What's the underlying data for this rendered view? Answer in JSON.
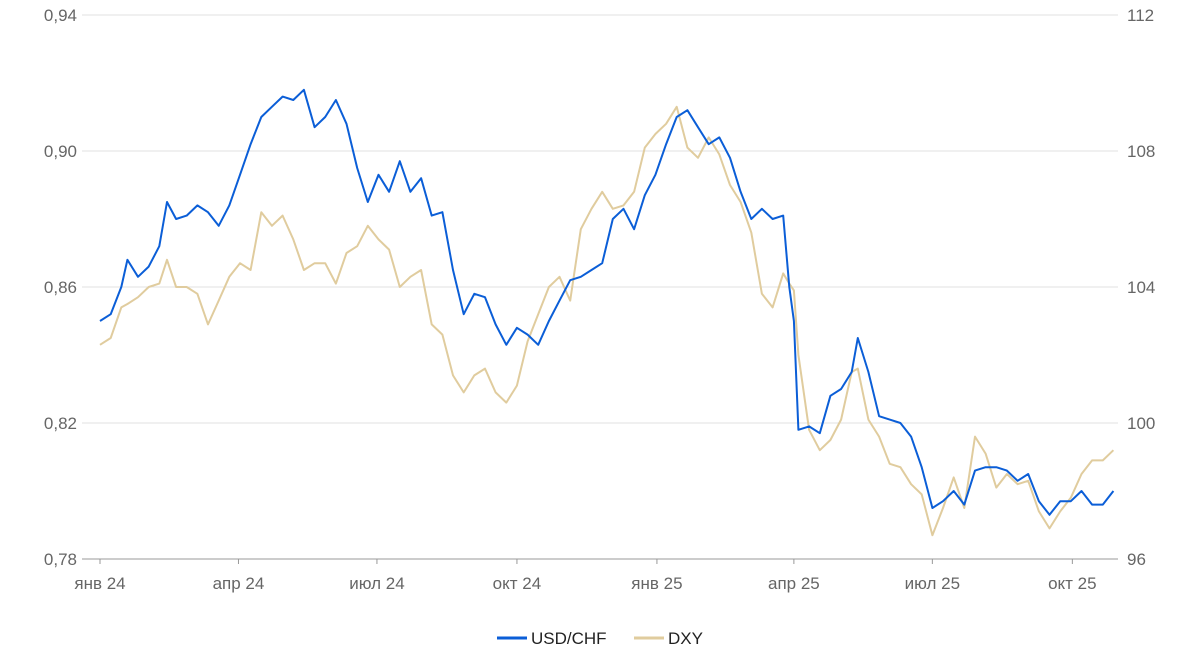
{
  "chart_data": {
    "type": "line",
    "title": "",
    "xlabel": "",
    "ylabel": "",
    "x_ticks": [
      "янв 24",
      "апр 24",
      "июл 24",
      "окт 24",
      "янв 25",
      "апр 25",
      "июл 25",
      "окт 25"
    ],
    "x_tick_dates": [
      "2024-01-01",
      "2024-04-01",
      "2024-07-01",
      "2024-10-01",
      "2025-01-01",
      "2025-04-01",
      "2025-07-01",
      "2025-10-01"
    ],
    "x_range": [
      "2024-01-01",
      "2025-10-31"
    ],
    "y_left": {
      "ticks": [
        "0,78",
        "0,82",
        "0,86",
        "0,90",
        "0,94"
      ],
      "ylim": [
        0.78,
        0.94
      ]
    },
    "y_right": {
      "ticks": [
        "96",
        "100",
        "104",
        "108",
        "112"
      ],
      "ylim": [
        96,
        112
      ]
    },
    "grid": true,
    "legend_position": "bottom-center",
    "series": [
      {
        "name": "USD/CHF",
        "axis": "left",
        "color": "#0b5ed7",
        "points": [
          [
            "2024-01-01",
            0.85
          ],
          [
            "2024-01-08",
            0.852
          ],
          [
            "2024-01-15",
            0.86
          ],
          [
            "2024-01-19",
            0.868
          ],
          [
            "2024-01-26",
            0.863
          ],
          [
            "2024-02-02",
            0.866
          ],
          [
            "2024-02-09",
            0.872
          ],
          [
            "2024-02-14",
            0.885
          ],
          [
            "2024-02-20",
            0.88
          ],
          [
            "2024-02-27",
            0.881
          ],
          [
            "2024-03-05",
            0.884
          ],
          [
            "2024-03-12",
            0.882
          ],
          [
            "2024-03-19",
            0.878
          ],
          [
            "2024-03-26",
            0.884
          ],
          [
            "2024-04-02",
            0.893
          ],
          [
            "2024-04-09",
            0.902
          ],
          [
            "2024-04-16",
            0.91
          ],
          [
            "2024-04-23",
            0.913
          ],
          [
            "2024-04-30",
            0.916
          ],
          [
            "2024-05-07",
            0.915
          ],
          [
            "2024-05-14",
            0.918
          ],
          [
            "2024-05-21",
            0.907
          ],
          [
            "2024-05-28",
            0.91
          ],
          [
            "2024-06-04",
            0.915
          ],
          [
            "2024-06-11",
            0.908
          ],
          [
            "2024-06-18",
            0.895
          ],
          [
            "2024-06-25",
            0.885
          ],
          [
            "2024-07-02",
            0.893
          ],
          [
            "2024-07-09",
            0.888
          ],
          [
            "2024-07-16",
            0.897
          ],
          [
            "2024-07-23",
            0.888
          ],
          [
            "2024-07-30",
            0.892
          ],
          [
            "2024-08-06",
            0.881
          ],
          [
            "2024-08-13",
            0.882
          ],
          [
            "2024-08-20",
            0.865
          ],
          [
            "2024-08-27",
            0.852
          ],
          [
            "2024-09-03",
            0.858
          ],
          [
            "2024-09-10",
            0.857
          ],
          [
            "2024-09-17",
            0.849
          ],
          [
            "2024-09-24",
            0.843
          ],
          [
            "2024-10-01",
            0.848
          ],
          [
            "2024-10-08",
            0.846
          ],
          [
            "2024-10-15",
            0.843
          ],
          [
            "2024-10-22",
            0.85
          ],
          [
            "2024-10-29",
            0.856
          ],
          [
            "2024-11-05",
            0.862
          ],
          [
            "2024-11-12",
            0.863
          ],
          [
            "2024-11-19",
            0.865
          ],
          [
            "2024-11-26",
            0.867
          ],
          [
            "2024-12-03",
            0.88
          ],
          [
            "2024-12-10",
            0.883
          ],
          [
            "2024-12-17",
            0.877
          ],
          [
            "2024-12-24",
            0.887
          ],
          [
            "2024-12-31",
            0.893
          ],
          [
            "2025-01-07",
            0.902
          ],
          [
            "2025-01-14",
            0.91
          ],
          [
            "2025-01-21",
            0.912
          ],
          [
            "2025-01-28",
            0.907
          ],
          [
            "2025-02-04",
            0.902
          ],
          [
            "2025-02-11",
            0.904
          ],
          [
            "2025-02-18",
            0.898
          ],
          [
            "2025-02-25",
            0.888
          ],
          [
            "2025-03-04",
            0.88
          ],
          [
            "2025-03-11",
            0.883
          ],
          [
            "2025-03-18",
            0.88
          ],
          [
            "2025-03-25",
            0.881
          ],
          [
            "2025-03-29",
            0.86
          ],
          [
            "2025-04-01",
            0.85
          ],
          [
            "2025-04-04",
            0.818
          ],
          [
            "2025-04-11",
            0.819
          ],
          [
            "2025-04-18",
            0.817
          ],
          [
            "2025-04-25",
            0.828
          ],
          [
            "2025-05-02",
            0.83
          ],
          [
            "2025-05-09",
            0.835
          ],
          [
            "2025-05-13",
            0.845
          ],
          [
            "2025-05-20",
            0.835
          ],
          [
            "2025-05-27",
            0.822
          ],
          [
            "2025-06-03",
            0.821
          ],
          [
            "2025-06-10",
            0.82
          ],
          [
            "2025-06-17",
            0.816
          ],
          [
            "2025-06-24",
            0.807
          ],
          [
            "2025-07-01",
            0.795
          ],
          [
            "2025-07-08",
            0.797
          ],
          [
            "2025-07-15",
            0.8
          ],
          [
            "2025-07-22",
            0.796
          ],
          [
            "2025-07-29",
            0.806
          ],
          [
            "2025-08-05",
            0.807
          ],
          [
            "2025-08-12",
            0.807
          ],
          [
            "2025-08-19",
            0.806
          ],
          [
            "2025-08-26",
            0.803
          ],
          [
            "2025-09-02",
            0.805
          ],
          [
            "2025-09-09",
            0.797
          ],
          [
            "2025-09-16",
            0.793
          ],
          [
            "2025-09-23",
            0.797
          ],
          [
            "2025-09-30",
            0.797
          ],
          [
            "2025-10-07",
            0.8
          ],
          [
            "2025-10-14",
            0.796
          ],
          [
            "2025-10-21",
            0.796
          ],
          [
            "2025-10-28",
            0.8
          ]
        ]
      },
      {
        "name": "DXY",
        "axis": "right",
        "color": "#e0cc9e",
        "points": [
          [
            "2024-01-01",
            102.3
          ],
          [
            "2024-01-08",
            102.5
          ],
          [
            "2024-01-15",
            103.4
          ],
          [
            "2024-01-19",
            103.5
          ],
          [
            "2024-01-26",
            103.7
          ],
          [
            "2024-02-02",
            104.0
          ],
          [
            "2024-02-09",
            104.1
          ],
          [
            "2024-02-14",
            104.8
          ],
          [
            "2024-02-20",
            104.0
          ],
          [
            "2024-02-27",
            104.0
          ],
          [
            "2024-03-05",
            103.8
          ],
          [
            "2024-03-12",
            102.9
          ],
          [
            "2024-03-19",
            103.6
          ],
          [
            "2024-03-26",
            104.3
          ],
          [
            "2024-04-02",
            104.7
          ],
          [
            "2024-04-09",
            104.5
          ],
          [
            "2024-04-16",
            106.2
          ],
          [
            "2024-04-23",
            105.8
          ],
          [
            "2024-04-30",
            106.1
          ],
          [
            "2024-05-07",
            105.4
          ],
          [
            "2024-05-14",
            104.5
          ],
          [
            "2024-05-21",
            104.7
          ],
          [
            "2024-05-28",
            104.7
          ],
          [
            "2024-06-04",
            104.1
          ],
          [
            "2024-06-11",
            105.0
          ],
          [
            "2024-06-18",
            105.2
          ],
          [
            "2024-06-25",
            105.8
          ],
          [
            "2024-07-02",
            105.4
          ],
          [
            "2024-07-09",
            105.1
          ],
          [
            "2024-07-16",
            104.0
          ],
          [
            "2024-07-23",
            104.3
          ],
          [
            "2024-07-30",
            104.5
          ],
          [
            "2024-08-06",
            102.9
          ],
          [
            "2024-08-13",
            102.6
          ],
          [
            "2024-08-20",
            101.4
          ],
          [
            "2024-08-27",
            100.9
          ],
          [
            "2024-09-03",
            101.4
          ],
          [
            "2024-09-10",
            101.6
          ],
          [
            "2024-09-17",
            100.9
          ],
          [
            "2024-09-24",
            100.6
          ],
          [
            "2024-10-01",
            101.1
          ],
          [
            "2024-10-08",
            102.4
          ],
          [
            "2024-10-15",
            103.2
          ],
          [
            "2024-10-22",
            104.0
          ],
          [
            "2024-10-29",
            104.3
          ],
          [
            "2024-11-05",
            103.6
          ],
          [
            "2024-11-12",
            105.7
          ],
          [
            "2024-11-19",
            106.3
          ],
          [
            "2024-11-26",
            106.8
          ],
          [
            "2024-12-03",
            106.3
          ],
          [
            "2024-12-10",
            106.4
          ],
          [
            "2024-12-17",
            106.8
          ],
          [
            "2024-12-24",
            108.1
          ],
          [
            "2024-12-31",
            108.5
          ],
          [
            "2025-01-07",
            108.8
          ],
          [
            "2025-01-14",
            109.3
          ],
          [
            "2025-01-21",
            108.1
          ],
          [
            "2025-01-28",
            107.8
          ],
          [
            "2025-02-04",
            108.4
          ],
          [
            "2025-02-11",
            107.9
          ],
          [
            "2025-02-18",
            107.0
          ],
          [
            "2025-02-25",
            106.5
          ],
          [
            "2025-03-04",
            105.6
          ],
          [
            "2025-03-11",
            103.8
          ],
          [
            "2025-03-18",
            103.4
          ],
          [
            "2025-03-25",
            104.4
          ],
          [
            "2025-03-29",
            104.1
          ],
          [
            "2025-04-01",
            103.9
          ],
          [
            "2025-04-04",
            102.0
          ],
          [
            "2025-04-11",
            99.8
          ],
          [
            "2025-04-18",
            99.2
          ],
          [
            "2025-04-25",
            99.5
          ],
          [
            "2025-05-02",
            100.1
          ],
          [
            "2025-05-09",
            101.5
          ],
          [
            "2025-05-13",
            101.6
          ],
          [
            "2025-05-20",
            100.1
          ],
          [
            "2025-05-27",
            99.6
          ],
          [
            "2025-06-03",
            98.8
          ],
          [
            "2025-06-10",
            98.7
          ],
          [
            "2025-06-17",
            98.2
          ],
          [
            "2025-06-24",
            97.9
          ],
          [
            "2025-07-01",
            96.7
          ],
          [
            "2025-07-08",
            97.5
          ],
          [
            "2025-07-15",
            98.4
          ],
          [
            "2025-07-22",
            97.5
          ],
          [
            "2025-07-29",
            99.6
          ],
          [
            "2025-08-05",
            99.1
          ],
          [
            "2025-08-12",
            98.1
          ],
          [
            "2025-08-19",
            98.5
          ],
          [
            "2025-08-26",
            98.2
          ],
          [
            "2025-09-02",
            98.3
          ],
          [
            "2025-09-09",
            97.4
          ],
          [
            "2025-09-16",
            96.9
          ],
          [
            "2025-09-23",
            97.4
          ],
          [
            "2025-09-30",
            97.8
          ],
          [
            "2025-10-07",
            98.5
          ],
          [
            "2025-10-14",
            98.9
          ],
          [
            "2025-10-21",
            98.9
          ],
          [
            "2025-10-28",
            99.2
          ]
        ]
      }
    ]
  }
}
